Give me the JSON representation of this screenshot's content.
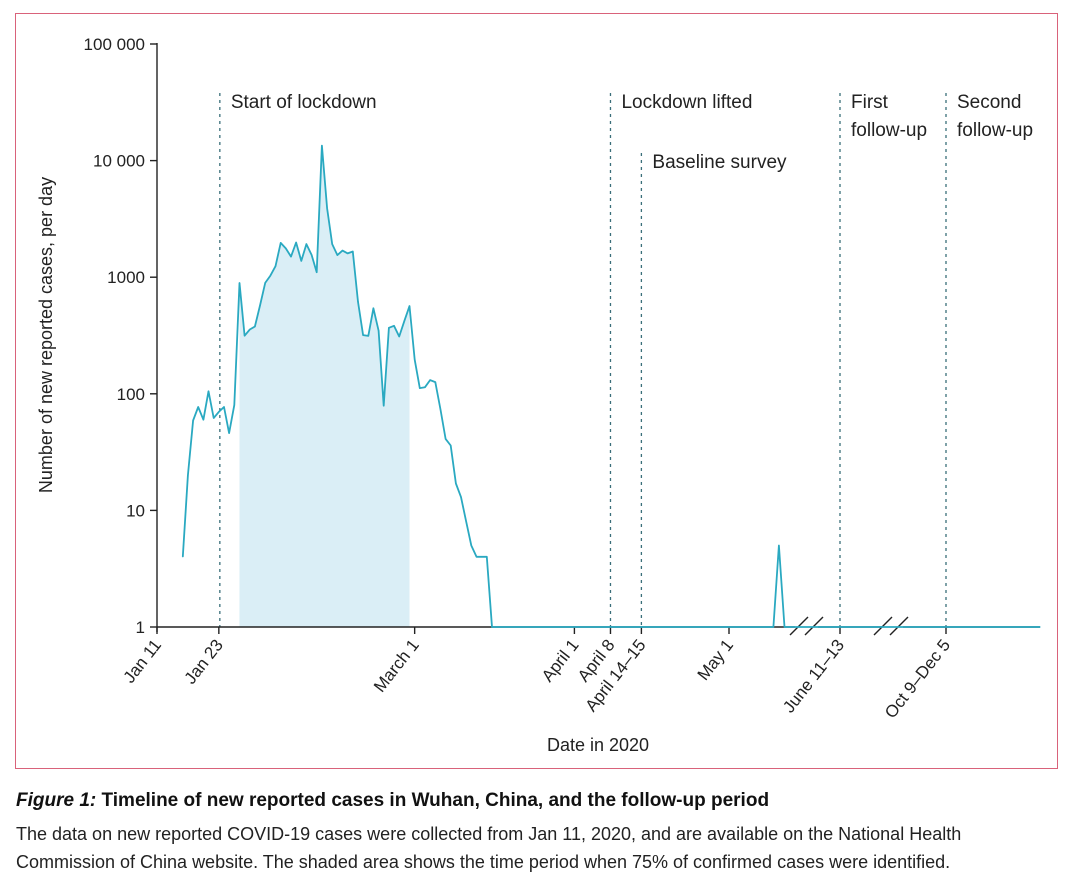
{
  "chart_data": {
    "type": "line",
    "title": "",
    "xlabel": "Date in 2020",
    "ylabel": "Number of new reported cases, per day",
    "y_scale": "log",
    "ylim": [
      1,
      100000
    ],
    "y_ticks": [
      {
        "value": 1,
        "label": "1"
      },
      {
        "value": 10,
        "label": "10"
      },
      {
        "value": 100,
        "label": "100"
      },
      {
        "value": 1000,
        "label": "1000"
      },
      {
        "value": 10000,
        "label": "10 000"
      },
      {
        "value": 100000,
        "label": "100 000"
      }
    ],
    "x_ticks": [
      {
        "date": "2020-01-11",
        "label": "Jan 11"
      },
      {
        "date": "2020-01-23",
        "label": "Jan 23"
      },
      {
        "date": "2020-03-01",
        "label": "March 1"
      },
      {
        "date": "2020-04-01",
        "label": "April 1"
      },
      {
        "date": "2020-04-08",
        "label": "April 8"
      },
      {
        "date": "2020-04-14",
        "label": "April 14–15"
      },
      {
        "date": "2020-05-01",
        "label": "May 1"
      },
      {
        "date": "2020-06-11",
        "label": "June 11–13"
      },
      {
        "date": "2020-10-09",
        "label": "Oct 9–Dec 5"
      }
    ],
    "axis_breaks": [
      "between May 1 and June 11–13",
      "between June 11–13 and Oct 9–Dec 5"
    ],
    "series": [
      {
        "color": "#2aa9c1",
        "points": [
          [
            "2020-01-16",
            4
          ],
          [
            "2020-01-17",
            20
          ],
          [
            "2020-01-18",
            59
          ],
          [
            "2020-01-19",
            77
          ],
          [
            "2020-01-20",
            60
          ],
          [
            "2020-01-21",
            105
          ],
          [
            "2020-01-22",
            62
          ],
          [
            "2020-01-23",
            70
          ],
          [
            "2020-01-24",
            77
          ],
          [
            "2020-01-25",
            46
          ],
          [
            "2020-01-26",
            80
          ],
          [
            "2020-01-27",
            892
          ],
          [
            "2020-01-28",
            315
          ],
          [
            "2020-01-29",
            356
          ],
          [
            "2020-01-30",
            378
          ],
          [
            "2020-01-31",
            576
          ],
          [
            "2020-02-01",
            894
          ],
          [
            "2020-02-02",
            1033
          ],
          [
            "2020-02-03",
            1242
          ],
          [
            "2020-02-04",
            1967
          ],
          [
            "2020-02-05",
            1766
          ],
          [
            "2020-02-06",
            1501
          ],
          [
            "2020-02-07",
            1985
          ],
          [
            "2020-02-08",
            1379
          ],
          [
            "2020-02-09",
            1921
          ],
          [
            "2020-02-10",
            1552
          ],
          [
            "2020-02-11",
            1104
          ],
          [
            "2020-02-12",
            13436
          ],
          [
            "2020-02-13",
            3910
          ],
          [
            "2020-02-14",
            1923
          ],
          [
            "2020-02-15",
            1548
          ],
          [
            "2020-02-16",
            1690
          ],
          [
            "2020-02-17",
            1600
          ],
          [
            "2020-02-18",
            1660
          ],
          [
            "2020-02-19",
            615
          ],
          [
            "2020-02-20",
            319
          ],
          [
            "2020-02-21",
            314
          ],
          [
            "2020-02-22",
            541
          ],
          [
            "2020-02-23",
            348
          ],
          [
            "2020-02-24",
            79
          ],
          [
            "2020-02-25",
            368
          ],
          [
            "2020-02-26",
            383
          ],
          [
            "2020-02-27",
            310
          ],
          [
            "2020-02-28",
            423
          ],
          [
            "2020-02-29",
            565
          ],
          [
            "2020-03-01",
            196
          ],
          [
            "2020-03-02",
            112
          ],
          [
            "2020-03-03",
            114
          ],
          [
            "2020-03-04",
            131
          ],
          [
            "2020-03-05",
            126
          ],
          [
            "2020-03-06",
            74
          ],
          [
            "2020-03-07",
            41
          ],
          [
            "2020-03-08",
            36
          ],
          [
            "2020-03-09",
            17
          ],
          [
            "2020-03-10",
            13
          ],
          [
            "2020-03-11",
            8
          ],
          [
            "2020-03-12",
            5
          ],
          [
            "2020-03-13",
            4
          ],
          [
            "2020-03-14",
            4
          ],
          [
            "2020-03-15",
            4
          ],
          [
            "2020-03-16",
            1
          ],
          [
            "2020-05-08",
            1
          ],
          [
            "2020-05-09",
            1
          ],
          [
            "2020-05-10",
            5
          ],
          [
            "2020-05-11",
            1
          ],
          [
            "2020-12-10",
            1
          ]
        ]
      }
    ],
    "shaded_region": {
      "from": "2020-01-27",
      "to": "2020-02-29",
      "color": "#daeef6"
    },
    "annotations": [
      {
        "date": "2020-01-23",
        "lines": [
          "Start of lockdown"
        ]
      },
      {
        "date": "2020-04-08",
        "lines": [
          "Lockdown lifted"
        ]
      },
      {
        "date": "2020-04-14",
        "lines": [
          "Baseline survey"
        ]
      },
      {
        "date": "2020-06-11",
        "lines": [
          "First",
          "follow-up"
        ]
      },
      {
        "date": "2020-10-09",
        "lines": [
          "Second",
          "follow-up"
        ]
      }
    ],
    "grid": false,
    "legend": "none"
  },
  "caption": {
    "figure_label": "Figure 1:",
    "title": " Timeline of new reported cases in Wuhan, China, and the follow-up period",
    "line1": "The data on new reported COVID-19 cases were collected from Jan 11, 2020, and are available on the National Health",
    "line2": "Commission of China website. The shaded area shows the time period when 75% of confirmed cases were identified."
  }
}
